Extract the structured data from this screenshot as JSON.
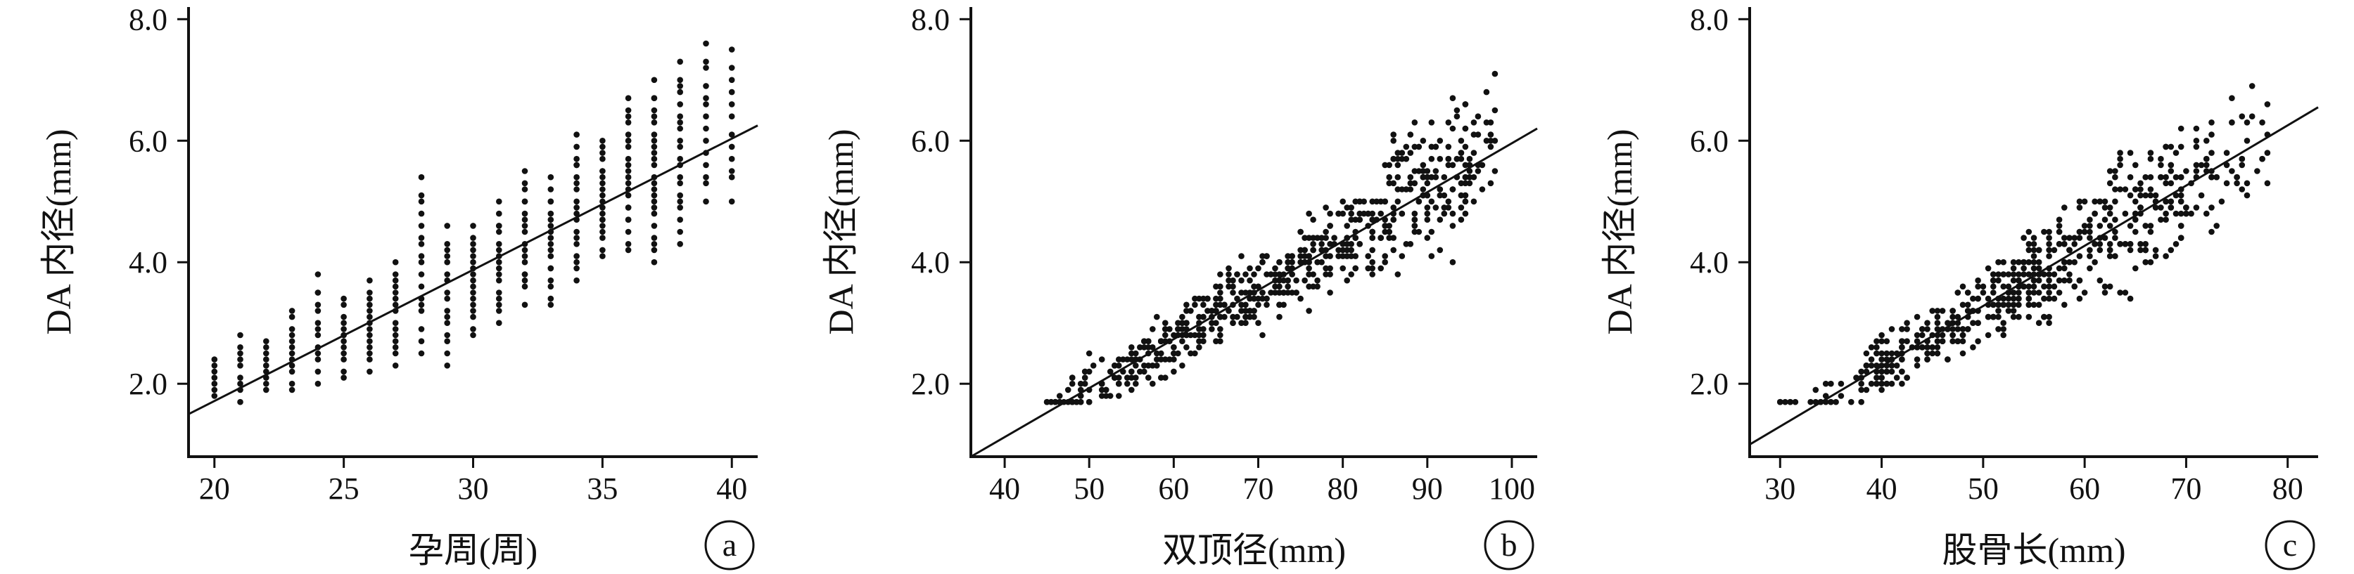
{
  "chart_data": [
    {
      "type": "scatter",
      "panel_label": "a",
      "xlabel": "孕周(周)",
      "ylabel": "DA 内径(mm)",
      "xlim": [
        19,
        41
      ],
      "ylim": [
        0.8,
        8.2
      ],
      "xticks": [
        20,
        25,
        30,
        35,
        40
      ],
      "xtick_labels": [
        "20",
        "25",
        "30",
        "35",
        "40"
      ],
      "yticks": [
        2.0,
        4.0,
        6.0,
        8.0
      ],
      "ytick_labels": [
        "2.0",
        "4.0",
        "6.0",
        "8.0"
      ],
      "fit_line": {
        "x": [
          19,
          41
        ],
        "y": [
          1.5,
          6.25
        ]
      },
      "point_groups": [
        {
          "x": 20,
          "y_range": [
            1.8,
            2.4
          ],
          "count": 7
        },
        {
          "x": 21,
          "y_range": [
            1.7,
            2.8
          ],
          "count": 9
        },
        {
          "x": 22,
          "y_range": [
            1.9,
            2.7
          ],
          "count": 10
        },
        {
          "x": 23,
          "y_range": [
            1.9,
            3.2
          ],
          "count": 12
        },
        {
          "x": 24,
          "y_range": [
            2.0,
            3.8
          ],
          "count": 13
        },
        {
          "x": 25,
          "y_range": [
            2.1,
            3.4
          ],
          "count": 13
        },
        {
          "x": 26,
          "y_range": [
            2.2,
            3.7
          ],
          "count": 14
        },
        {
          "x": 27,
          "y_range": [
            2.3,
            4.0
          ],
          "count": 15
        },
        {
          "x": 28,
          "y_range": [
            2.5,
            5.4
          ],
          "count": 17
        },
        {
          "x": 29,
          "y_range": [
            2.3,
            4.6
          ],
          "count": 16
        },
        {
          "x": 30,
          "y_range": [
            2.8,
            4.6
          ],
          "count": 17
        },
        {
          "x": 31,
          "y_range": [
            3.0,
            5.0
          ],
          "count": 17
        },
        {
          "x": 32,
          "y_range": [
            3.3,
            5.5
          ],
          "count": 18
        },
        {
          "x": 33,
          "y_range": [
            3.3,
            5.4
          ],
          "count": 18
        },
        {
          "x": 34,
          "y_range": [
            3.7,
            6.1
          ],
          "count": 19
        },
        {
          "x": 35,
          "y_range": [
            4.1,
            6.0
          ],
          "count": 20
        },
        {
          "x": 36,
          "y_range": [
            4.2,
            6.7
          ],
          "count": 22
        },
        {
          "x": 37,
          "y_range": [
            4.0,
            7.0
          ],
          "count": 24
        },
        {
          "x": 38,
          "y_range": [
            4.3,
            7.3
          ],
          "count": 20
        },
        {
          "x": 39,
          "y_range": [
            5.0,
            7.6
          ],
          "count": 14
        },
        {
          "x": 40,
          "y_range": [
            5.0,
            7.5
          ],
          "count": 12
        }
      ]
    },
    {
      "type": "scatter",
      "panel_label": "b",
      "xlabel": "双顶径(mm)",
      "ylabel": "DA 内径(mm)",
      "xlim": [
        36,
        103
      ],
      "ylim": [
        0.8,
        8.2
      ],
      "xticks": [
        40,
        50,
        60,
        70,
        80,
        90,
        100
      ],
      "xtick_labels": [
        "40",
        "50",
        "60",
        "70",
        "80",
        "90",
        "100"
      ],
      "yticks": [
        2.0,
        4.0,
        6.0,
        8.0
      ],
      "ytick_labels": [
        "2.0",
        "4.0",
        "6.0",
        "8.0"
      ],
      "fit_line": {
        "x": [
          36,
          103
        ],
        "y": [
          0.8,
          6.2
        ]
      },
      "point_clusters": [
        {
          "x_range": [
            45,
            55
          ],
          "y_range": [
            1.7,
            2.9
          ],
          "count": 70
        },
        {
          "x_range": [
            55,
            65
          ],
          "y_range": [
            1.9,
            3.4
          ],
          "count": 110
        },
        {
          "x_range": [
            65,
            75
          ],
          "y_range": [
            2.3,
            4.1
          ],
          "count": 130
        },
        {
          "x_range": [
            75,
            85
          ],
          "y_range": [
            2.7,
            5.0
          ],
          "count": 130
        },
        {
          "x_range": [
            85,
            95
          ],
          "y_range": [
            3.6,
            7.0
          ],
          "count": 150
        },
        {
          "x_range": [
            95,
            98
          ],
          "y_range": [
            4.5,
            7.5
          ],
          "count": 25
        }
      ]
    },
    {
      "type": "scatter",
      "panel_label": "c",
      "xlabel": "股骨长(mm)",
      "ylabel": "DA 内径(mm)",
      "xlim": [
        27,
        83
      ],
      "ylim": [
        0.8,
        8.2
      ],
      "xticks": [
        30,
        40,
        50,
        60,
        70,
        80
      ],
      "xtick_labels": [
        "30",
        "40",
        "50",
        "60",
        "70",
        "80"
      ],
      "yticks": [
        2.0,
        4.0,
        6.0,
        8.0
      ],
      "ytick_labels": [
        "2.0",
        "4.0",
        "6.0",
        "8.0"
      ],
      "fit_line": {
        "x": [
          27,
          83
        ],
        "y": [
          1.0,
          6.55
        ]
      },
      "point_clusters": [
        {
          "x_range": [
            30,
            38
          ],
          "y_range": [
            1.7,
            3.0
          ],
          "count": 25
        },
        {
          "x_range": [
            38,
            46
          ],
          "y_range": [
            1.9,
            3.3
          ],
          "count": 110
        },
        {
          "x_range": [
            46,
            54
          ],
          "y_range": [
            2.2,
            4.0
          ],
          "count": 130
        },
        {
          "x_range": [
            54,
            62
          ],
          "y_range": [
            2.6,
            5.0
          ],
          "count": 130
        },
        {
          "x_range": [
            62,
            70
          ],
          "y_range": [
            3.2,
            7.0
          ],
          "count": 130
        },
        {
          "x_range": [
            70,
            78
          ],
          "y_range": [
            4.5,
            7.6
          ],
          "count": 60
        }
      ]
    }
  ]
}
